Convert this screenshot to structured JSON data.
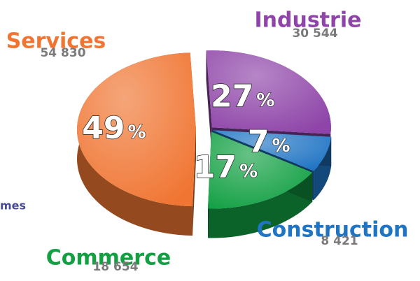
{
  "chart_data": {
    "type": "pie",
    "categories": [
      "Industrie",
      "Construction",
      "Commerce",
      "Services"
    ],
    "values": [
      30544,
      8421,
      18654,
      54830
    ],
    "value_labels": [
      "30 544",
      "8 421",
      "18 654",
      "54 830"
    ],
    "percentages": [
      27,
      7,
      17,
      49
    ],
    "percent_sign": "%",
    "colors": [
      "#8e44a8",
      "#1f74c4",
      "#12a043",
      "#f07532"
    ],
    "annotations": [
      "mes"
    ]
  }
}
